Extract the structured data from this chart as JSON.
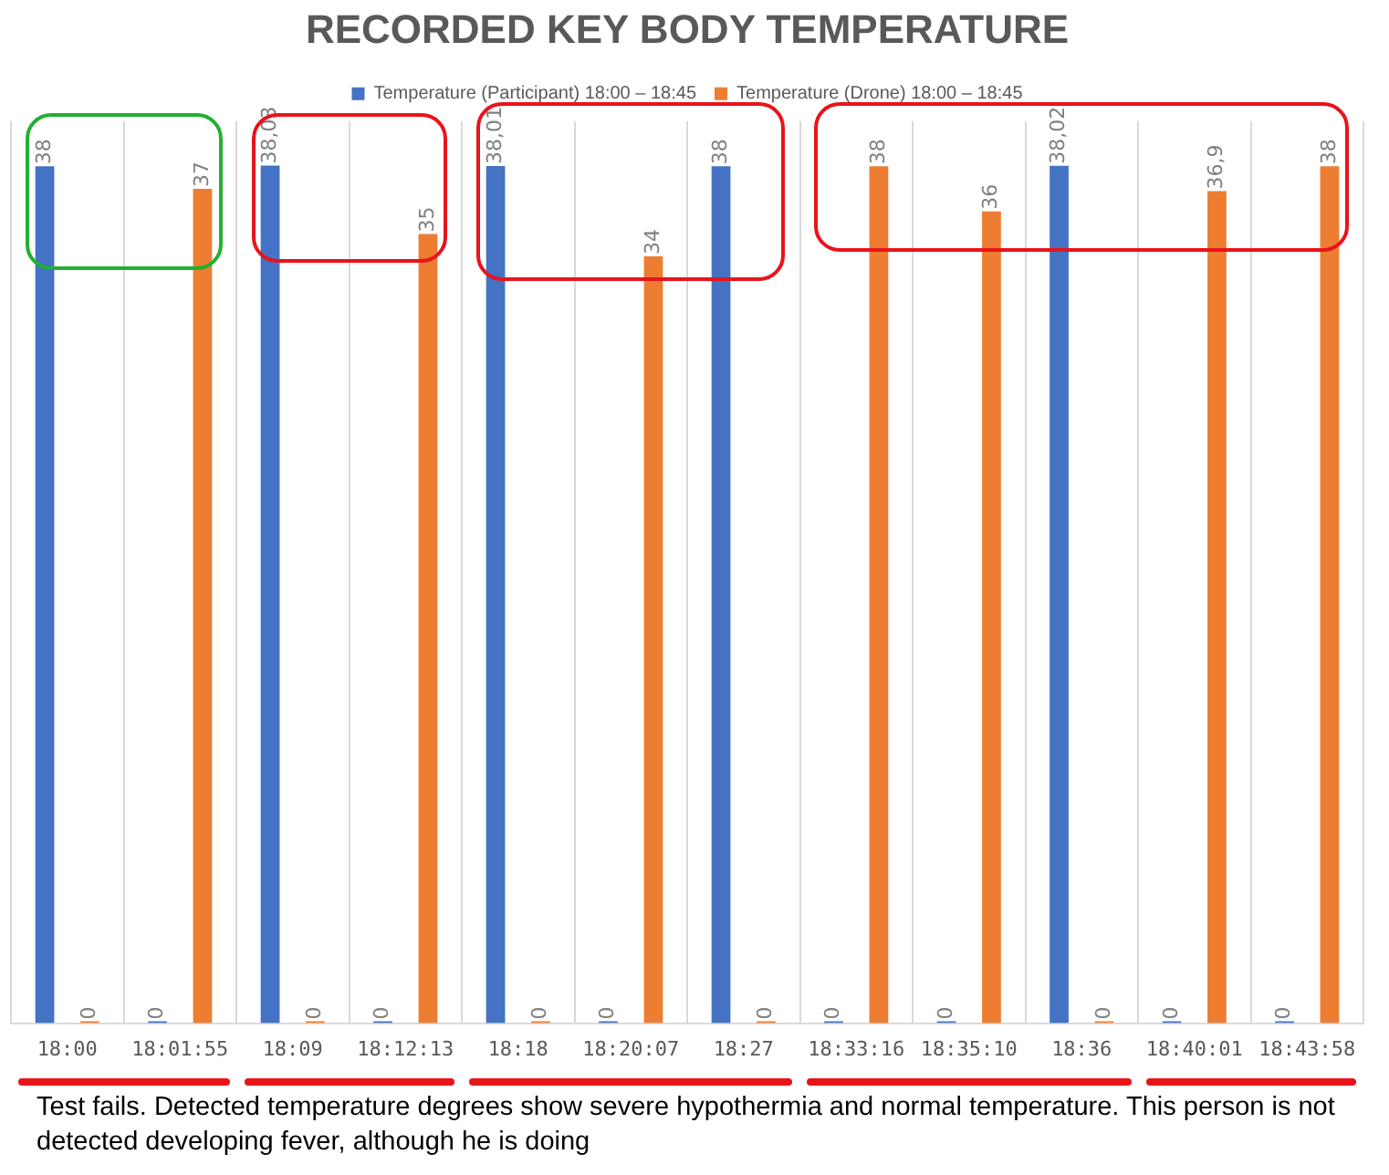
{
  "chart_data": {
    "type": "bar",
    "title": "RECORDED KEY BODY TEMPERATURE",
    "categories": [
      "18:00",
      "18:01:55",
      "18:09",
      "18:12:13",
      "18:18",
      "18:20:07",
      "18:27",
      "18:33:16",
      "18:35:10",
      "18:36",
      "18:40:01",
      "18:43:58"
    ],
    "series": [
      {
        "name": "Temperature (Participant) 18:00 – 18:45",
        "color": "#4472c4",
        "values": [
          38,
          0,
          38.03,
          0,
          38.01,
          0,
          38,
          0,
          0,
          38.02,
          0,
          0
        ],
        "value_labels": [
          "38",
          "0",
          "38,03",
          "0",
          "38,01",
          "0",
          "38",
          "0",
          "0",
          "38,02",
          "0",
          "0"
        ]
      },
      {
        "name": "Temperature (Drone) 18:00 – 18:45",
        "color": "#ed7d31",
        "values": [
          0,
          37,
          0,
          35,
          0,
          34,
          0,
          38,
          36,
          0,
          36.9,
          38
        ],
        "value_labels": [
          "0",
          "37",
          "0",
          "35",
          "0",
          "34",
          "0",
          "38",
          "36",
          "0",
          "36,9",
          "38"
        ]
      }
    ],
    "ylim": [
      0,
      40
    ],
    "tick_labels": "x",
    "grid": "x",
    "legend": "top",
    "annotations": [
      "Test fails. Detected temperature degrees show severe hypothermia and normal temperature. This person is not detected developing fever, although he is doing"
    ]
  }
}
